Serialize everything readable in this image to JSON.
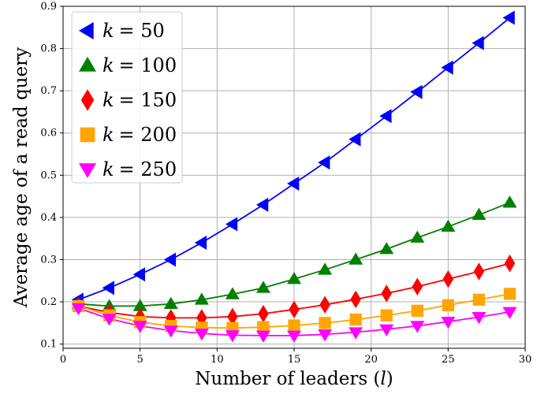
{
  "chart_data": {
    "type": "line",
    "xlabel": "Number of leaders (l)",
    "ylabel": "Average age of a read query",
    "xlim": [
      0,
      30
    ],
    "ylim": [
      0.09,
      0.9
    ],
    "xticks": [
      0,
      5,
      10,
      15,
      20,
      25,
      30
    ],
    "yticks": [
      0.1,
      0.2,
      0.3,
      0.4,
      0.5,
      0.6,
      0.7,
      0.8,
      0.9
    ],
    "grid": true,
    "legend_position": "top-left",
    "x": [
      1,
      3,
      5,
      7,
      9,
      11,
      13,
      15,
      17,
      19,
      21,
      23,
      25,
      27,
      29
    ],
    "series": [
      {
        "name": "k = 50",
        "color": "#0000ff",
        "marker": "triangle-left",
        "values": [
          0.205,
          0.233,
          0.265,
          0.3,
          0.34,
          0.384,
          0.43,
          0.48,
          0.53,
          0.585,
          0.64,
          0.697,
          0.755,
          0.813,
          0.873
        ]
      },
      {
        "name": "k = 100",
        "color": "#008000",
        "marker": "triangle-up",
        "values": [
          0.195,
          0.19,
          0.19,
          0.195,
          0.205,
          0.218,
          0.233,
          0.254,
          0.276,
          0.3,
          0.325,
          0.352,
          0.378,
          0.406,
          0.435
        ]
      },
      {
        "name": "k = 150",
        "color": "#ff0000",
        "marker": "diamond",
        "values": [
          0.19,
          0.175,
          0.165,
          0.162,
          0.162,
          0.165,
          0.172,
          0.182,
          0.193,
          0.206,
          0.22,
          0.236,
          0.254,
          0.272,
          0.291
        ]
      },
      {
        "name": "k = 200",
        "color": "#ffa500",
        "marker": "square",
        "values": [
          0.19,
          0.168,
          0.152,
          0.143,
          0.139,
          0.138,
          0.14,
          0.144,
          0.15,
          0.158,
          0.168,
          0.179,
          0.192,
          0.205,
          0.219
        ]
      },
      {
        "name": "k = 250",
        "color": "#ff00ff",
        "marker": "triangle-down",
        "values": [
          0.185,
          0.16,
          0.143,
          0.132,
          0.125,
          0.121,
          0.12,
          0.12,
          0.123,
          0.128,
          0.135,
          0.143,
          0.153,
          0.164,
          0.176
        ]
      }
    ]
  },
  "legend": {
    "items": [
      {
        "k_symbol": "k",
        "eq_value": "= 50"
      },
      {
        "k_symbol": "k",
        "eq_value": "= 100"
      },
      {
        "k_symbol": "k",
        "eq_value": "= 150"
      },
      {
        "k_symbol": "k",
        "eq_value": "= 200"
      },
      {
        "k_symbol": "k",
        "eq_value": "= 250"
      }
    ]
  }
}
